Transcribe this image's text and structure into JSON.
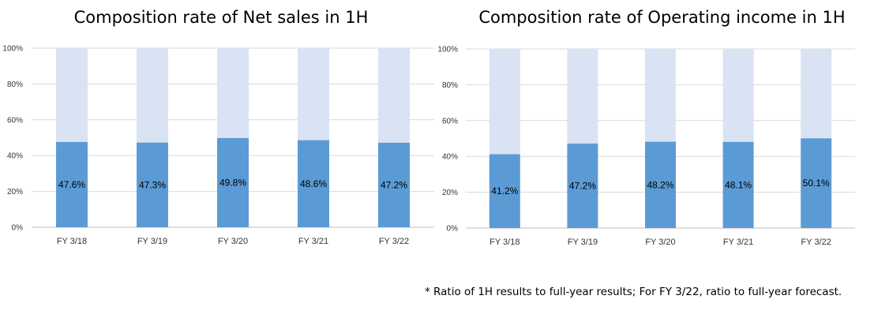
{
  "chart_data": [
    {
      "type": "bar",
      "stacked": true,
      "title": "Composition rate of Net sales in 1H",
      "categories": [
        "FY 3/18",
        "FY 3/19",
        "FY 3/20",
        "FY 3/21",
        "FY 3/22"
      ],
      "values": [
        47.6,
        47.3,
        49.8,
        48.6,
        47.2
      ],
      "value_labels": [
        "47.6%",
        "47.3%",
        "49.8%",
        "48.6%",
        "47.2%"
      ],
      "ylim": [
        0,
        100
      ],
      "yticks": [
        "0%",
        "20%",
        "40%",
        "60%",
        "80%",
        "100%"
      ],
      "grid": true,
      "legend": "none",
      "colors": {
        "value": "#5b9bd5",
        "remainder": "#dae3f3"
      }
    },
    {
      "type": "bar",
      "stacked": true,
      "title": "Composition rate of Operating income in 1H",
      "categories": [
        "FY 3/18",
        "FY 3/19",
        "FY 3/20",
        "FY 3/21",
        "FY 3/22"
      ],
      "values": [
        41.2,
        47.2,
        48.2,
        48.1,
        50.1
      ],
      "value_labels": [
        "41.2%",
        "47.2%",
        "48.2%",
        "48.1%",
        "50.1%"
      ],
      "ylim": [
        0,
        100
      ],
      "yticks": [
        "0%",
        "20%",
        "40%",
        "60%",
        "80%",
        "100%"
      ],
      "grid": true,
      "legend": "none",
      "colors": {
        "value": "#5b9bd5",
        "remainder": "#dae3f3"
      }
    }
  ],
  "footnote": "* Ratio of 1H results to full-year results; For FY 3/22, ratio to full-year forecast."
}
